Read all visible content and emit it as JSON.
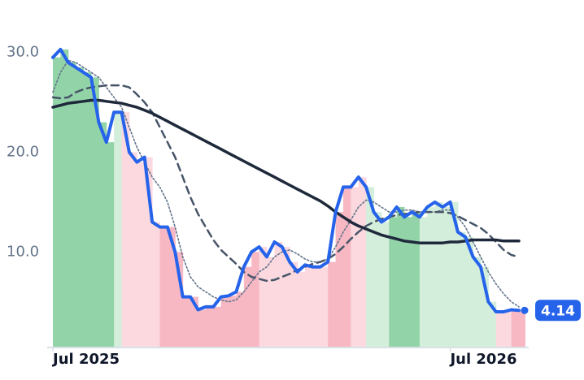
{
  "chart_data": {
    "type": "line",
    "ylim": [
      0.5,
      32
    ],
    "yticks": [
      {
        "value": 10,
        "label": "10.0"
      },
      {
        "value": 20,
        "label": "20.0"
      },
      {
        "value": 30,
        "label": "30.0"
      }
    ],
    "xlim": [
      0,
      61
    ],
    "xticks": [
      {
        "value": 0,
        "label": "Jul 2025"
      },
      {
        "value": 52,
        "label": "Jul 2026"
      }
    ],
    "series": [
      {
        "color": "#2563eb",
        "values": [
          29.5,
          30.3,
          29,
          28.5,
          28,
          27.5,
          23,
          21,
          24,
          24,
          20,
          19,
          19.5,
          13,
          12.5,
          12.5,
          10,
          5.5,
          5.5,
          4.2,
          4.5,
          4.5,
          5.5,
          5.6,
          6,
          8.5,
          10,
          10.5,
          9.5,
          11,
          10.5,
          9,
          8,
          8.7,
          8.5,
          8.5,
          9,
          14,
          16.5,
          16.5,
          17.5,
          16.5,
          14,
          13,
          13.5,
          14.5,
          13.5,
          14,
          13.5,
          14.5,
          15,
          14.5,
          15,
          12,
          11.5,
          9.5,
          8.5,
          5,
          4,
          4,
          4.2,
          4.14
        ],
        "area_colors": [
          "#93d3a8",
          "#93d3a8",
          "#93d3a8",
          "#93d3a8",
          "#93d3a8",
          "#93d3a8",
          "#93d3a8",
          "#93d3a8",
          "#d3eedb",
          "#fbd9df",
          "#fbd9df",
          "#fbd9df",
          "#fbd9df",
          "#fbd9df",
          "#f7b8c4",
          "#f7b8c4",
          "#f7b8c4",
          "#f7b8c4",
          "#f7b8c4",
          "#f7b8c4",
          "#f7b8c4",
          "#f7b8c4",
          "#f7b8c4",
          "#f7b8c4",
          "#f7b8c4",
          "#f7b8c4",
          "#f7b8c4",
          "#fbd9df",
          "#fbd9df",
          "#fbd9df",
          "#fbd9df",
          "#fbd9df",
          "#fbd9df",
          "#fbd9df",
          "#fbd9df",
          "#fbd9df",
          "#f7b8c4",
          "#f7b8c4",
          "#f7b8c4",
          "#fbd9df",
          "#fbd9df",
          "#d3eedb",
          "#d3eedb",
          "#d3eedb",
          "#93d3a8",
          "#93d3a8",
          "#93d3a8",
          "#93d3a8",
          "#d3eedb",
          "#d3eedb",
          "#d3eedb",
          "#d3eedb",
          "#d3eedb",
          "#d3eedb",
          "#d3eedb",
          "#d3eedb",
          "#d3eedb",
          "#d3eedb",
          "#fbd9df",
          "#fbd9df",
          "#f7b8c4",
          "#f7b8c4"
        ]
      },
      {
        "color": "#1e293b",
        "values": [
          24.5,
          24.7,
          24.9,
          25.0,
          25.1,
          25.2,
          25.2,
          25.1,
          25.0,
          24.9,
          24.7,
          24.5,
          24.2,
          23.9,
          23.5,
          23.1,
          22.7,
          22.3,
          21.9,
          21.5,
          21.1,
          20.7,
          20.3,
          19.9,
          19.5,
          19.1,
          18.7,
          18.3,
          17.9,
          17.5,
          17.1,
          16.7,
          16.3,
          15.9,
          15.5,
          15.1,
          14.6,
          14.0,
          13.5,
          13.0,
          12.6,
          12.3,
          12.0,
          11.7,
          11.5,
          11.3,
          11.1,
          11.0,
          10.9,
          10.9,
          10.9,
          10.9,
          11.0,
          11.0,
          11.1,
          11.2,
          11.2,
          11.2,
          11.2,
          11.1,
          11.1,
          11.1
        ]
      },
      {
        "color": "#475569",
        "values": [
          25.5,
          25.4,
          25.5,
          26,
          26.3,
          26.5,
          26.6,
          26.7,
          26.7,
          26.7,
          26.5,
          25.8,
          25,
          24,
          22.5,
          21,
          19.5,
          17.5,
          15.5,
          13.8,
          12.5,
          11.2,
          10.2,
          9.5,
          8.8,
          8,
          7.5,
          7.3,
          7.1,
          7.2,
          7.5,
          7.8,
          8.2,
          8.5,
          8.8,
          9,
          9.3,
          9.8,
          10.5,
          11.3,
          12,
          12.6,
          13,
          13.3,
          13.5,
          13.7,
          13.8,
          13.9,
          14,
          14,
          14,
          14,
          13.9,
          13.6,
          13.2,
          12.8,
          12.4,
          11.8,
          11,
          10.2,
          9.7,
          9.5
        ]
      },
      {
        "color": "#64748b",
        "values": [
          26,
          28,
          29.2,
          29,
          28.5,
          28,
          27.5,
          26.5,
          25.5,
          24.5,
          22.5,
          20.5,
          19,
          17.5,
          16.5,
          15,
          12.5,
          9.5,
          7.5,
          6.5,
          6,
          5.5,
          5.2,
          5,
          5.2,
          6,
          7,
          8,
          8.5,
          9.5,
          10,
          10.2,
          9.8,
          9.3,
          9,
          9,
          9.3,
          10.5,
          12,
          13.2,
          14.5,
          15.2,
          15,
          14.5,
          14,
          14,
          14.2,
          14.2,
          14,
          14,
          14,
          14.2,
          14.2,
          13.5,
          12.5,
          11,
          9.5,
          8,
          6.8,
          5.8,
          5,
          4.5
        ]
      }
    ]
  }
}
